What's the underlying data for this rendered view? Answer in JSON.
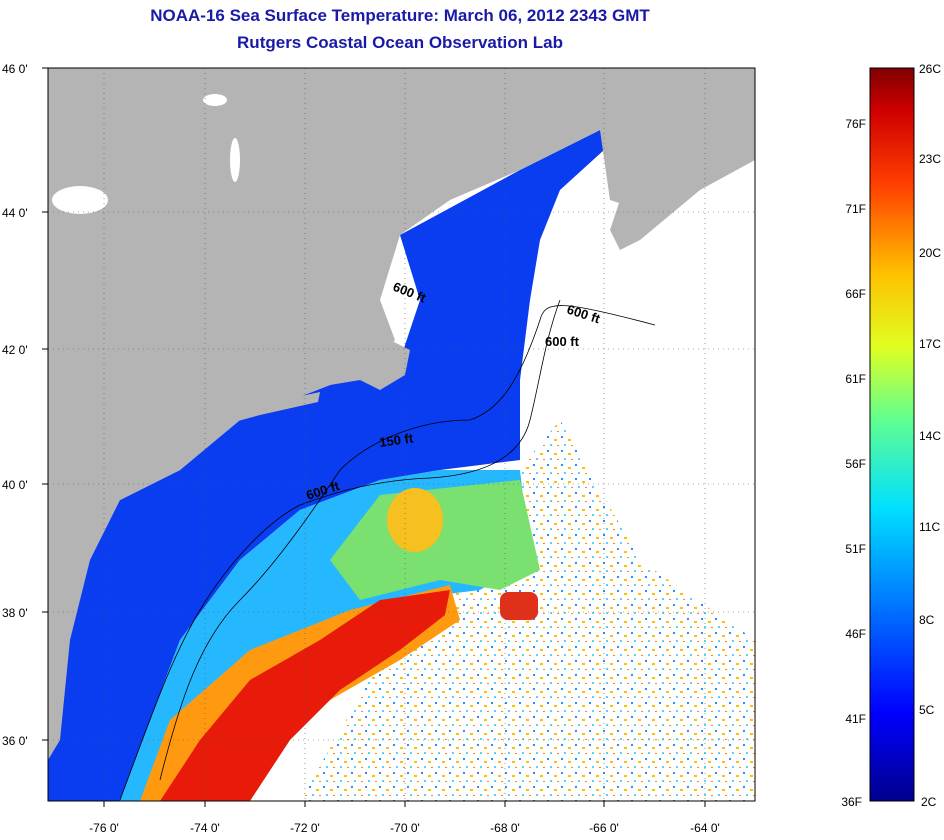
{
  "title": "NOAA-16 Sea Surface Temperature:  March 06, 2012 2343 GMT",
  "subtitle": "Rutgers Coastal Ocean Observation Lab",
  "axes": {
    "lat_labels": [
      "46 0'",
      "44 0'",
      "42 0'",
      "40 0'",
      "38 0'",
      "36 0'"
    ],
    "lon_labels": [
      "-76 0'",
      "-74 0'",
      "-72 0'",
      "-70 0'",
      "-68 0'",
      "-66 0'",
      "-64 0'"
    ]
  },
  "contours": {
    "label_600_north": "600 ft",
    "label_600_east1": "600 ft",
    "label_600_east2": "600 ft",
    "label_150": "150 ft",
    "label_600_south": "600 ft"
  },
  "colorbar": {
    "celsius": [
      "26C",
      "23C",
      "20C",
      "17C",
      "14C",
      "11C",
      "8C",
      "5C",
      "2C"
    ],
    "fahrenheit": [
      "76F",
      "71F",
      "66F",
      "61F",
      "56F",
      "51F",
      "46F",
      "41F",
      "36F"
    ]
  },
  "colors": {
    "land": "#b4b4b4",
    "cloud": "#ffffff",
    "title": "#1a1aa8",
    "cold": "#0a2aee",
    "warm": "#e81a0a"
  }
}
